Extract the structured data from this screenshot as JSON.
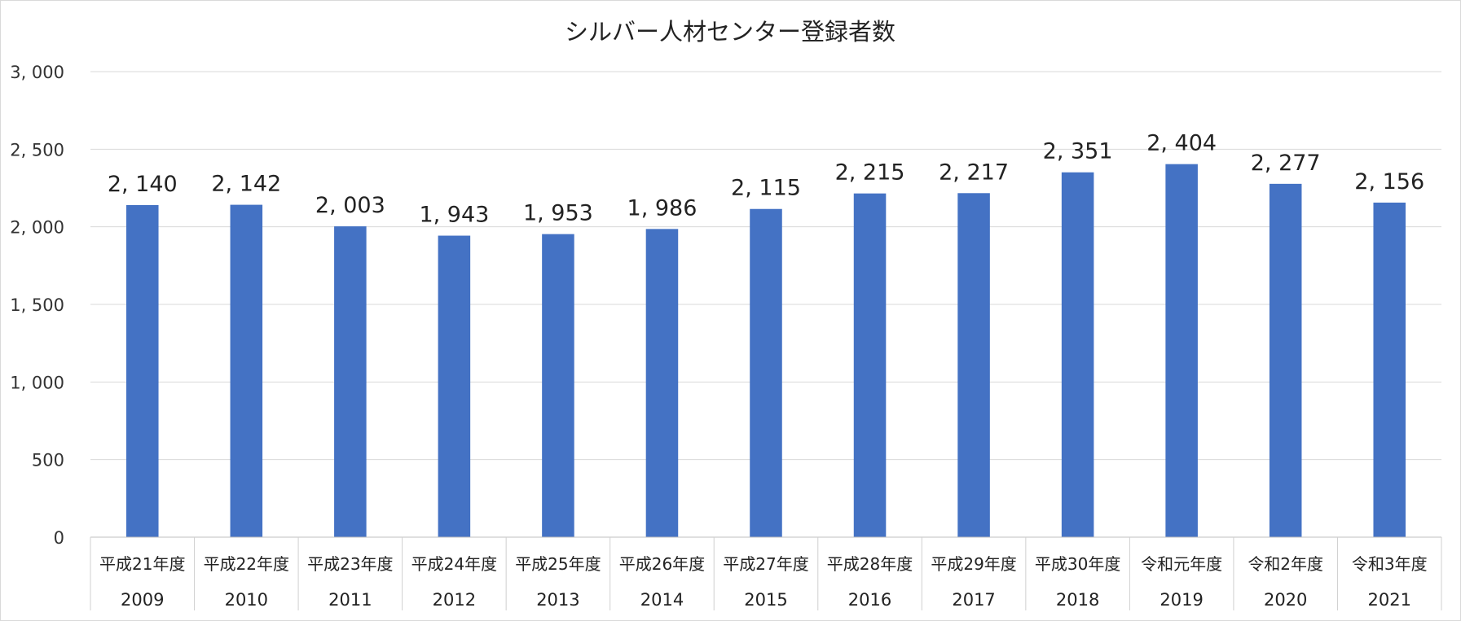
{
  "chart_data": {
    "type": "bar",
    "title": "シルバー人材センター登録者数",
    "xlabel": "",
    "ylabel": "",
    "ylim": [
      0,
      3000
    ],
    "yticks": [
      0,
      500,
      1000,
      1500,
      2000,
      2500,
      3000
    ],
    "ytick_labels": [
      "0",
      "500",
      "1, 000",
      "1, 500",
      "2, 000",
      "2, 500",
      "3, 000"
    ],
    "grid": true,
    "legend": "none",
    "bar_color": "#4472C4",
    "categories": [
      {
        "era": "平成21年度",
        "year": "2009"
      },
      {
        "era": "平成22年度",
        "year": "2010"
      },
      {
        "era": "平成23年度",
        "year": "2011"
      },
      {
        "era": "平成24年度",
        "year": "2012"
      },
      {
        "era": "平成25年度",
        "year": "2013"
      },
      {
        "era": "平成26年度",
        "year": "2014"
      },
      {
        "era": "平成27年度",
        "year": "2015"
      },
      {
        "era": "平成28年度",
        "year": "2016"
      },
      {
        "era": "平成29年度",
        "year": "2017"
      },
      {
        "era": "平成30年度",
        "year": "2018"
      },
      {
        "era": "令和元年度",
        "year": "2019"
      },
      {
        "era": "令和2年度",
        "year": "2020"
      },
      {
        "era": "令和3年度",
        "year": "2021"
      }
    ],
    "values": [
      2140,
      2142,
      2003,
      1943,
      1953,
      1986,
      2115,
      2215,
      2217,
      2351,
      2404,
      2277,
      2156
    ],
    "data_labels": [
      "2, 140",
      "2, 142",
      "2, 003",
      "1, 943",
      "1, 953",
      "1, 986",
      "2, 115",
      "2, 215",
      "2, 217",
      "2, 351",
      "2, 404",
      "2, 277",
      "2, 156"
    ]
  }
}
